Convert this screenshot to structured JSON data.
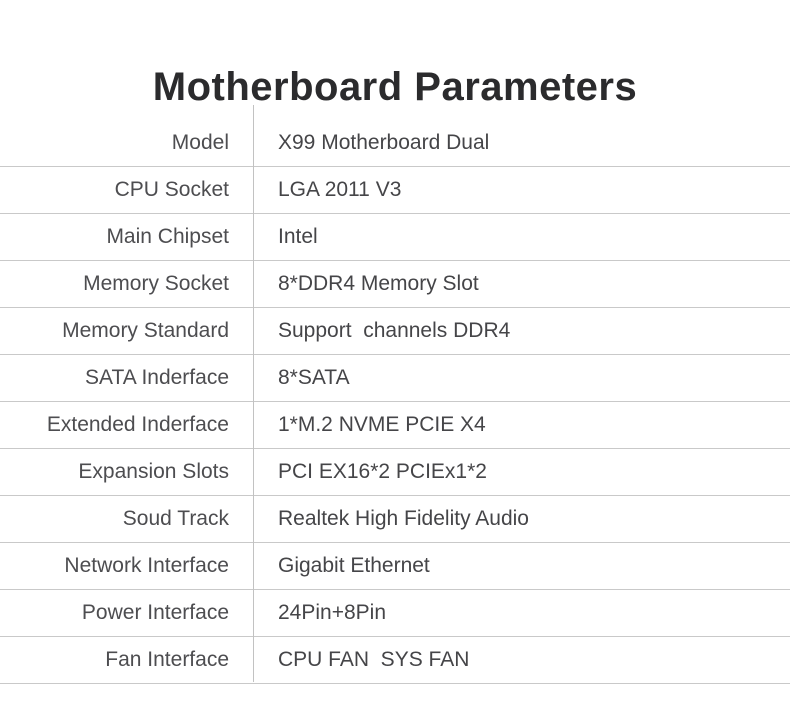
{
  "title": "Motherboard Parameters",
  "table": {
    "rows": [
      {
        "label": "Model",
        "value": "X99 Motherboard Dual"
      },
      {
        "label": "CPU Socket",
        "value": "LGA 2011 V3"
      },
      {
        "label": "Main Chipset",
        "value": "Intel"
      },
      {
        "label": "Memory Socket",
        "value": "8*DDR4 Memory Slot"
      },
      {
        "label": "Memory Standard",
        "value": "Support  channels DDR4"
      },
      {
        "label": "SATA Inderface",
        "value": "8*SATA"
      },
      {
        "label": "Extended Inderface",
        "value": "1*M.2 NVME PCIE X4"
      },
      {
        "label": "Expansion Slots",
        "value": "PCI EX16*2 PCIEx1*2"
      },
      {
        "label": "Soud Track",
        "value": "Realtek High Fidelity Audio"
      },
      {
        "label": "Network Interface",
        "value": "Gigabit Ethernet"
      },
      {
        "label": "Power Interface",
        "value": "24Pin+8Pin"
      },
      {
        "label": "Fan Interface",
        "value": "CPU FAN  SYS FAN"
      }
    ]
  },
  "colors": {
    "background": "#ffffff",
    "title_text": "#2b2b2d",
    "label_text": "#4d4d50",
    "value_text": "#454548",
    "row_line": "#c9c9c9",
    "column_divider": "#c2c2c2"
  }
}
